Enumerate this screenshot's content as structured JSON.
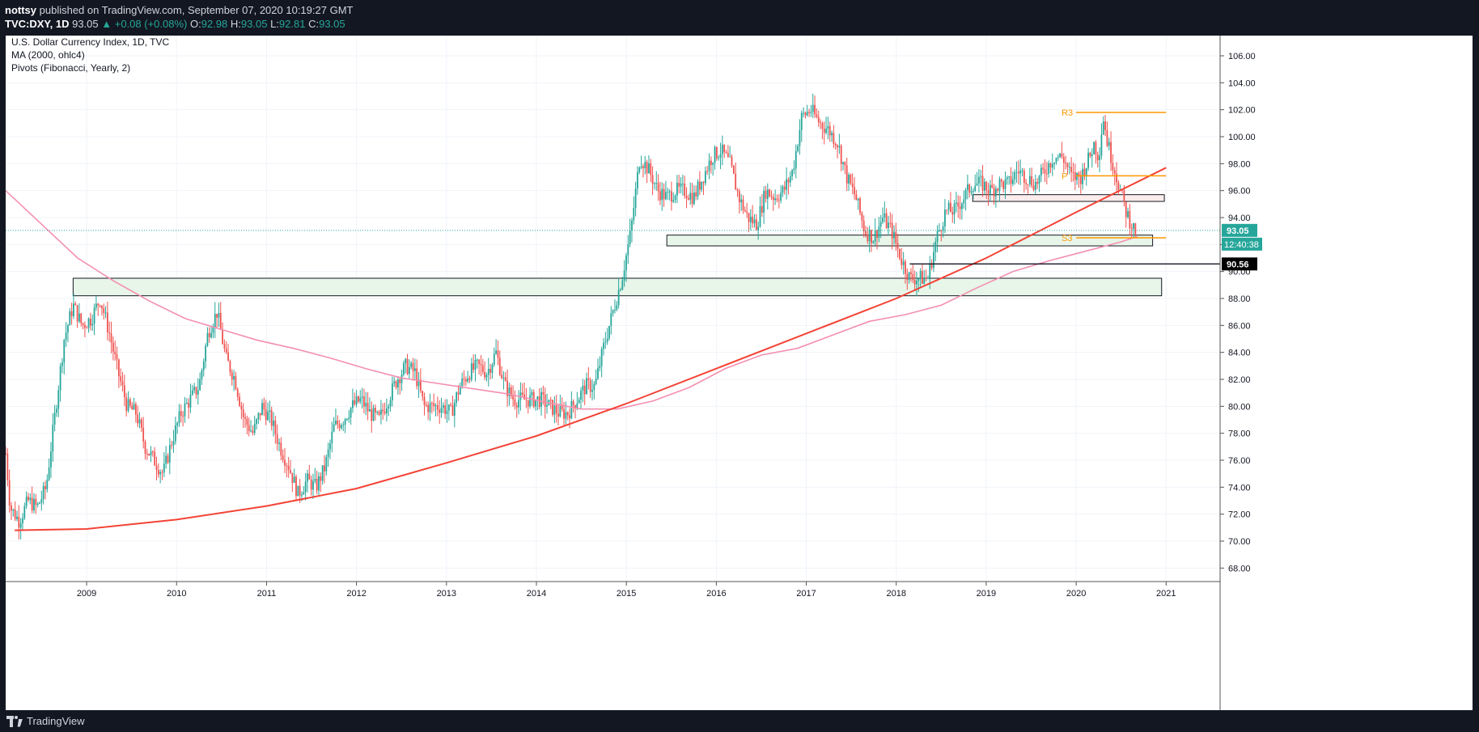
{
  "header": {
    "author": "nottsy",
    "published": "published on TradingView.com, September 07, 2020 10:19:27 GMT",
    "symbol": "TVC:DXY, 1D",
    "last": "93.05",
    "change": "▲ +0.08 (+0.08%)",
    "open_label": "O:",
    "open": "92.98",
    "high_label": "H:",
    "high": "93.05",
    "low_label": "L:",
    "low": "92.81",
    "close_label": "C:",
    "close": "93.05"
  },
  "legend": {
    "title": "U.S. Dollar Currency Index, 1D, TVC",
    "ma": "MA (2000, ohlc4)",
    "pivots": "Pivots (Fibonacci, Yearly, 2)"
  },
  "footer": {
    "brand": "TradingView"
  },
  "colors": {
    "up": "#26a69a",
    "down": "#ef5350",
    "ma": "#f48fb1",
    "trend": "#f44336",
    "pivot": "#ff9800",
    "zone_green": "#e8f5e9",
    "zone_pink": "#fdecec"
  },
  "chart_data": {
    "type": "line",
    "x_ticks": [
      "2009",
      "2010",
      "2011",
      "2012",
      "2013",
      "2014",
      "2015",
      "2016",
      "2017",
      "2018",
      "2019",
      "2020",
      "2021"
    ],
    "y_ticks": [
      "68.00",
      "70.00",
      "72.00",
      "74.00",
      "76.00",
      "78.00",
      "80.00",
      "82.00",
      "84.00",
      "86.00",
      "88.00",
      "90.00",
      "92.00",
      "94.00",
      "96.00",
      "98.00",
      "100.00",
      "102.00",
      "104.00",
      "106.00"
    ],
    "xlim": [
      2008.1,
      2021.6
    ],
    "ylim": [
      67.0,
      107.5
    ],
    "price_series": {
      "x": [
        2008.1,
        2008.15,
        2008.25,
        2008.35,
        2008.45,
        2008.55,
        2008.65,
        2008.75,
        2008.85,
        2008.95,
        2009.05,
        2009.15,
        2009.25,
        2009.35,
        2009.45,
        2009.55,
        2009.65,
        2009.75,
        2009.85,
        2009.95,
        2010.05,
        2010.15,
        2010.25,
        2010.35,
        2010.45,
        2010.55,
        2010.65,
        2010.75,
        2010.85,
        2010.95,
        2011.05,
        2011.15,
        2011.25,
        2011.35,
        2011.45,
        2011.55,
        2011.65,
        2011.75,
        2011.85,
        2011.95,
        2012.05,
        2012.15,
        2012.25,
        2012.35,
        2012.45,
        2012.55,
        2012.65,
        2012.75,
        2012.85,
        2012.95,
        2013.05,
        2013.15,
        2013.25,
        2013.35,
        2013.45,
        2013.55,
        2013.65,
        2013.75,
        2013.85,
        2013.95,
        2014.05,
        2014.15,
        2014.25,
        2014.35,
        2014.45,
        2014.55,
        2014.65,
        2014.75,
        2014.85,
        2014.95,
        2015.05,
        2015.15,
        2015.25,
        2015.35,
        2015.45,
        2015.55,
        2015.65,
        2015.75,
        2015.85,
        2015.95,
        2016.05,
        2016.15,
        2016.25,
        2016.35,
        2016.45,
        2016.55,
        2016.65,
        2016.75,
        2016.85,
        2016.95,
        2017.05,
        2017.15,
        2017.25,
        2017.35,
        2017.45,
        2017.55,
        2017.65,
        2017.75,
        2017.85,
        2017.95,
        2018.05,
        2018.15,
        2018.25,
        2018.35,
        2018.45,
        2018.55,
        2018.65,
        2018.75,
        2018.85,
        2018.95,
        2019.05,
        2019.15,
        2019.25,
        2019.35,
        2019.45,
        2019.55,
        2019.65,
        2019.75,
        2019.85,
        2019.95,
        2020.05,
        2020.15,
        2020.2,
        2020.25,
        2020.3,
        2020.35,
        2020.45,
        2020.55,
        2020.65,
        2020.68
      ],
      "y": [
        76.5,
        72.5,
        71.5,
        73.0,
        72.5,
        74.0,
        79.5,
        85.0,
        87.5,
        86.0,
        86.5,
        88.0,
        85.5,
        82.5,
        80.0,
        79.5,
        77.0,
        76.0,
        75.0,
        77.5,
        79.5,
        80.5,
        81.5,
        85.5,
        87.0,
        83.5,
        82.0,
        79.0,
        78.0,
        80.0,
        79.0,
        77.0,
        75.5,
        73.5,
        74.5,
        74.0,
        75.5,
        78.5,
        79.0,
        80.0,
        80.5,
        79.5,
        79.0,
        80.5,
        82.0,
        83.0,
        82.5,
        80.0,
        80.0,
        80.0,
        79.5,
        81.5,
        82.5,
        83.0,
        82.5,
        84.0,
        81.5,
        80.5,
        80.5,
        80.5,
        80.5,
        80.0,
        79.5,
        79.5,
        80.5,
        81.5,
        81.5,
        84.5,
        87.0,
        89.5,
        93.0,
        98.5,
        97.5,
        96.0,
        95.5,
        96.0,
        96.0,
        95.5,
        97.0,
        98.5,
        99.0,
        98.0,
        95.5,
        94.0,
        93.5,
        96.0,
        95.5,
        96.0,
        97.5,
        101.5,
        102.0,
        101.0,
        100.5,
        99.5,
        97.0,
        95.5,
        93.0,
        92.5,
        94.0,
        93.0,
        91.0,
        89.5,
        89.5,
        89.5,
        92.5,
        94.5,
        94.5,
        95.5,
        96.5,
        96.5,
        96.0,
        96.5,
        96.5,
        97.5,
        97.0,
        96.5,
        97.5,
        98.5,
        98.5,
        97.0,
        97.0,
        98.5,
        99.5,
        98.5,
        101.5,
        99.5,
        97.0,
        94.5,
        93.0,
        93.05
      ]
    },
    "ma_series": {
      "name": "MA (2000, ohlc4)",
      "x": [
        2008.1,
        2008.5,
        2008.9,
        2009.3,
        2009.7,
        2010.1,
        2010.5,
        2010.9,
        2011.3,
        2011.7,
        2012.1,
        2012.5,
        2012.9,
        2013.3,
        2013.7,
        2014.1,
        2014.5,
        2014.9,
        2015.3,
        2015.7,
        2016.1,
        2016.5,
        2016.9,
        2017.3,
        2017.7,
        2018.1,
        2018.5,
        2018.9,
        2019.3,
        2019.7,
        2020.1,
        2020.5,
        2020.68
      ],
      "y": [
        96.0,
        93.5,
        91.0,
        89.3,
        87.8,
        86.5,
        85.7,
        84.9,
        84.3,
        83.6,
        82.8,
        82.1,
        81.7,
        81.3,
        80.9,
        80.3,
        79.8,
        79.8,
        80.4,
        81.4,
        82.8,
        83.8,
        84.3,
        85.3,
        86.3,
        86.8,
        87.5,
        88.8,
        90.0,
        90.8,
        91.5,
        92.2,
        92.6
      ]
    },
    "trendline": {
      "x": [
        2008.2,
        2009.0,
        2010.0,
        2011.0,
        2012.0,
        2013.0,
        2014.0,
        2015.0,
        2016.0,
        2017.0,
        2018.0,
        2019.0,
        2020.0,
        2021.0
      ],
      "y": [
        70.8,
        70.9,
        71.6,
        72.6,
        73.9,
        75.8,
        77.8,
        80.2,
        82.8,
        85.4,
        88.0,
        91.0,
        94.4,
        97.7
      ]
    },
    "zones": [
      {
        "x1": 2008.85,
        "x2": 2020.95,
        "y1": 88.2,
        "y2": 89.5,
        "color": "green"
      },
      {
        "x1": 2015.45,
        "x2": 2020.85,
        "y1": 91.9,
        "y2": 92.7,
        "color": "green"
      },
      {
        "x1": 2018.85,
        "x2": 2020.98,
        "y1": 95.2,
        "y2": 95.7,
        "color": "pink"
      }
    ],
    "pivots": [
      {
        "label": "R3",
        "y": 101.8
      },
      {
        "label": "P",
        "y": 97.1
      },
      {
        "label": "S3",
        "y": 92.5
      }
    ],
    "pivot_range": [
      2020.0,
      2021.0
    ],
    "hline": {
      "y": 90.56,
      "x1": 2018.15,
      "label": "90.56"
    },
    "last_price": {
      "y": 93.05,
      "label": "93.05",
      "countdown": "12:40:38"
    }
  }
}
